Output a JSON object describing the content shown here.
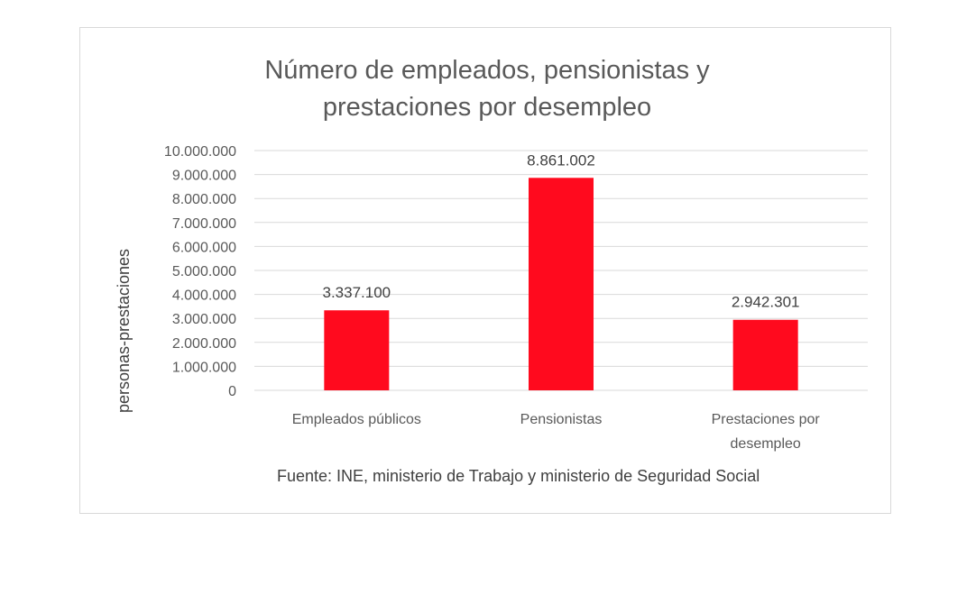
{
  "chart_data": {
    "type": "bar",
    "title_lines": [
      "Número de empleados, pensionistas y",
      "prestaciones por desempleo"
    ],
    "ylabel": "personas-prestaciones",
    "xlabel": "",
    "categories": [
      {
        "lines": [
          "Empleados públicos"
        ]
      },
      {
        "lines": [
          "Pensionistas"
        ]
      },
      {
        "lines": [
          "Prestaciones por",
          "desempleo"
        ]
      }
    ],
    "values": [
      3337100,
      8861002,
      2942301
    ],
    "data_labels": [
      "3.337.100",
      "8.861.002",
      "2.942.301"
    ],
    "ylim": [
      0,
      10000000
    ],
    "yticks": [
      0,
      1000000,
      2000000,
      3000000,
      4000000,
      5000000,
      6000000,
      7000000,
      8000000,
      9000000,
      10000000
    ],
    "ytick_labels": [
      "0",
      "1.000.000",
      "2.000.000",
      "3.000.000",
      "4.000.000",
      "5.000.000",
      "6.000.000",
      "7.000.000",
      "8.000.000",
      "9.000.000",
      "10.000.000"
    ],
    "grid": true,
    "bar_color": "#ff0a1e",
    "source_note": "Fuente: INE, ministerio de Trabajo y ministerio de Seguridad Social"
  }
}
